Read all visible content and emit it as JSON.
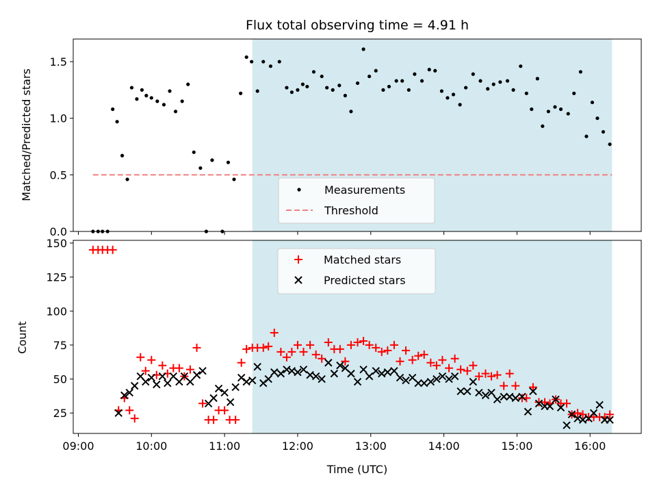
{
  "colors": {
    "shade": "#d4eaf0",
    "measurement": "#000000",
    "threshold": "#f08080",
    "matched": "#ff0000",
    "predicted": "#000000"
  },
  "chart_data": [
    {
      "type": "scatter",
      "title": "Flux total observing time = 4.91 h",
      "xlabel": "",
      "ylabel": "Matched/Predicted stars",
      "xlim": [
        8.93,
        16.7
      ],
      "ylim": [
        0.0,
        1.7
      ],
      "yticks": [
        "0.0",
        "0.5",
        "1.0",
        "1.5"
      ],
      "shaded_span": [
        11.38,
        16.3
      ],
      "threshold": {
        "name": "Threshold",
        "value": 0.5,
        "x_range": [
          9.2,
          16.3
        ]
      },
      "legend": {
        "placement": "lower-center",
        "entries": [
          "Measurements",
          "Threshold"
        ]
      },
      "series": [
        {
          "name": "Measurements",
          "x": [
            9.2,
            9.27,
            9.33,
            9.4,
            9.47,
            9.53,
            9.6,
            9.67,
            9.73,
            9.8,
            9.87,
            9.93,
            10.0,
            10.08,
            10.17,
            10.25,
            10.33,
            10.42,
            10.5,
            10.58,
            10.67,
            10.75,
            10.83,
            10.97,
            11.05,
            11.13,
            11.22,
            11.3,
            11.37,
            11.45,
            11.53,
            11.63,
            11.75,
            11.85,
            11.92,
            12.0,
            12.07,
            12.13,
            12.22,
            12.33,
            12.4,
            12.48,
            12.57,
            12.65,
            12.73,
            12.82,
            12.9,
            12.98,
            13.07,
            13.17,
            13.25,
            13.35,
            13.43,
            13.52,
            13.6,
            13.7,
            13.8,
            13.88,
            13.97,
            14.05,
            14.13,
            14.22,
            14.3,
            14.4,
            14.5,
            14.6,
            14.68,
            14.77,
            14.87,
            14.95,
            15.05,
            15.13,
            15.2,
            15.28,
            15.35,
            15.43,
            15.52,
            15.6,
            15.7,
            15.78,
            15.87,
            15.95,
            16.03,
            16.1,
            16.18,
            16.27
          ],
          "y": [
            0.0,
            0.0,
            0.0,
            0.0,
            1.08,
            0.97,
            0.67,
            0.46,
            1.27,
            1.17,
            1.25,
            1.2,
            1.18,
            1.15,
            1.12,
            1.24,
            1.06,
            1.15,
            1.3,
            0.7,
            0.56,
            0.0,
            0.63,
            0.0,
            0.61,
            0.46,
            1.22,
            1.54,
            1.5,
            1.24,
            1.5,
            1.46,
            1.5,
            1.27,
            1.23,
            1.25,
            1.3,
            1.28,
            1.41,
            1.37,
            1.27,
            1.25,
            1.29,
            1.2,
            1.06,
            1.31,
            1.61,
            1.37,
            1.42,
            1.25,
            1.28,
            1.33,
            1.33,
            1.25,
            1.39,
            1.33,
            1.43,
            1.42,
            1.24,
            1.18,
            1.21,
            1.12,
            1.27,
            1.39,
            1.33,
            1.26,
            1.3,
            1.32,
            1.33,
            1.25,
            1.46,
            1.22,
            1.08,
            1.35,
            0.93,
            1.06,
            1.1,
            1.08,
            1.04,
            1.22,
            1.41,
            0.84,
            1.14,
            1.0,
            0.88,
            0.77
          ]
        }
      ]
    },
    {
      "type": "scatter",
      "title": "",
      "xlabel": "Time (UTC)",
      "ylabel": "Count",
      "xlim": [
        8.93,
        16.7
      ],
      "ylim": [
        10,
        152
      ],
      "yticks": [
        "25",
        "50",
        "75",
        "100",
        "125",
        "150"
      ],
      "xticks": [
        "09:00",
        "10:00",
        "11:00",
        "12:00",
        "13:00",
        "14:00",
        "15:00",
        "16:00"
      ],
      "shaded_span": [
        11.38,
        16.3
      ],
      "legend": {
        "placement": "upper-center",
        "entries": [
          "Matched stars",
          "Predicted stars"
        ]
      },
      "series": [
        {
          "name": "Matched stars",
          "marker": "+",
          "x": [
            9.2,
            9.27,
            9.33,
            9.4,
            9.47,
            9.55,
            9.63,
            9.7,
            9.77,
            9.85,
            9.92,
            10.0,
            10.07,
            10.15,
            10.22,
            10.3,
            10.38,
            10.45,
            10.53,
            10.62,
            10.7,
            10.78,
            10.85,
            10.92,
            11.0,
            11.07,
            11.15,
            11.23,
            11.3,
            11.38,
            11.45,
            11.53,
            11.6,
            11.68,
            11.77,
            11.85,
            11.92,
            12.0,
            12.08,
            12.17,
            12.25,
            12.33,
            12.42,
            12.5,
            12.58,
            12.65,
            12.73,
            12.82,
            12.9,
            12.98,
            13.07,
            13.15,
            13.23,
            13.32,
            13.4,
            13.48,
            13.57,
            13.65,
            13.73,
            13.82,
            13.9,
            13.98,
            14.07,
            14.15,
            14.23,
            14.32,
            14.4,
            14.48,
            14.57,
            14.65,
            14.73,
            14.82,
            14.9,
            14.98,
            15.07,
            15.13,
            15.22,
            15.3,
            15.38,
            15.45,
            15.53,
            15.6,
            15.68,
            15.75,
            15.83,
            15.9,
            15.98,
            16.05,
            16.13,
            16.2,
            16.27
          ],
          "y": [
            145,
            145,
            145,
            145,
            145,
            27,
            36,
            27,
            21,
            66,
            56,
            64,
            53,
            60,
            54,
            58,
            58,
            52,
            57,
            73,
            32,
            20,
            20,
            27,
            27,
            20,
            20,
            62,
            72,
            73,
            73,
            73,
            74,
            84,
            70,
            66,
            70,
            75,
            70,
            75,
            68,
            65,
            77,
            72,
            72,
            63,
            75,
            77,
            78,
            75,
            73,
            70,
            71,
            75,
            63,
            71,
            64,
            67,
            68,
            62,
            60,
            64,
            58,
            65,
            57,
            56,
            60,
            52,
            54,
            52,
            53,
            45,
            54,
            45,
            36,
            36,
            44,
            33,
            33,
            32,
            35,
            32,
            32,
            24,
            25,
            24,
            22,
            22,
            22,
            22,
            24
          ]
        },
        {
          "name": "Predicted stars",
          "marker": "x",
          "x": [
            9.55,
            9.63,
            9.7,
            9.77,
            9.85,
            9.92,
            10.0,
            10.07,
            10.15,
            10.22,
            10.3,
            10.38,
            10.45,
            10.53,
            10.62,
            10.7,
            10.78,
            10.85,
            10.92,
            11.0,
            11.08,
            11.15,
            11.23,
            11.3,
            11.38,
            11.45,
            11.53,
            11.6,
            11.68,
            11.77,
            11.85,
            11.92,
            12.0,
            12.08,
            12.17,
            12.25,
            12.33,
            12.42,
            12.5,
            12.58,
            12.65,
            12.73,
            12.82,
            12.9,
            12.98,
            13.07,
            13.15,
            13.23,
            13.32,
            13.4,
            13.48,
            13.57,
            13.65,
            13.73,
            13.82,
            13.9,
            13.98,
            14.07,
            14.15,
            14.23,
            14.32,
            14.4,
            14.48,
            14.57,
            14.65,
            14.73,
            14.82,
            14.9,
            14.98,
            15.07,
            15.15,
            15.22,
            15.3,
            15.38,
            15.45,
            15.53,
            15.6,
            15.68,
            15.75,
            15.83,
            15.9,
            15.98,
            16.05,
            16.13,
            16.2,
            16.27
          ],
          "y": [
            25,
            38,
            40,
            45,
            52,
            48,
            51,
            46,
            52,
            47,
            52,
            48,
            52,
            48,
            53,
            56,
            32,
            36,
            43,
            40,
            33,
            44,
            51,
            48,
            49,
            59,
            47,
            50,
            55,
            54,
            57,
            56,
            55,
            57,
            53,
            52,
            50,
            62,
            54,
            60,
            58,
            54,
            48,
            57,
            52,
            56,
            54,
            55,
            56,
            51,
            49,
            51,
            47,
            47,
            48,
            50,
            52,
            50,
            52,
            41,
            41,
            48,
            40,
            38,
            40,
            35,
            37,
            37,
            36,
            37,
            26,
            41,
            32,
            30,
            30,
            35,
            29,
            16,
            24,
            21,
            20,
            21,
            25,
            31,
            20,
            20
          ]
        }
      ]
    }
  ]
}
